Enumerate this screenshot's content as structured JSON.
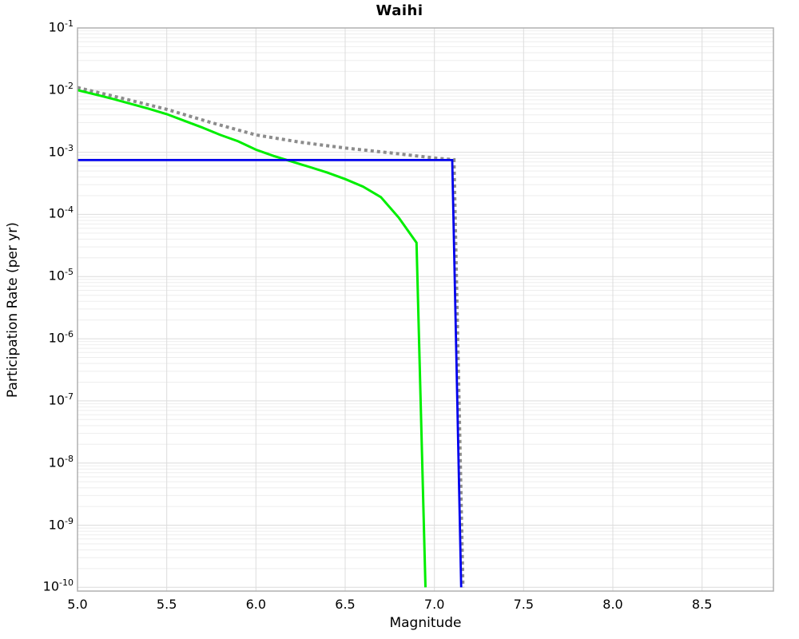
{
  "chart_data": {
    "type": "line",
    "title": "Waihi",
    "xlabel": "Magnitude",
    "ylabel": "Participation Rate (per yr)",
    "xlim": [
      5.0,
      8.9
    ],
    "ylim": [
      0.1,
      1e-10
    ],
    "x_ticks": [
      5.0,
      5.5,
      6.0,
      6.5,
      7.0,
      7.5,
      8.0,
      8.5
    ],
    "y_tick_exponents": [
      -1,
      -2,
      -3,
      -4,
      -5,
      -6,
      -7,
      -8,
      -9,
      -10
    ],
    "grid": true,
    "legend": false,
    "scale": {
      "x": "linear",
      "y": "log"
    },
    "colors": {
      "background": "#ffffff",
      "grid_major": "#dcdcdc",
      "grid_minor": "#eeeeee",
      "frame": "#b0b0b0",
      "green_line": "#00ee00",
      "blue_line": "#0000ee",
      "gray_dotted_line": "#8c8c8c"
    },
    "series": [
      {
        "name": "gray-dotted",
        "color": "#8c8c8c",
        "style": "dotted",
        "width": 4,
        "points": [
          [
            5.0,
            0.011
          ],
          [
            5.25,
            0.0074
          ],
          [
            5.5,
            0.0049
          ],
          [
            5.75,
            0.003
          ],
          [
            6.0,
            0.0019
          ],
          [
            6.25,
            0.00145
          ],
          [
            6.5,
            0.00117
          ],
          [
            6.75,
            0.00098
          ],
          [
            7.0,
            0.00081
          ],
          [
            7.11,
            0.00076
          ],
          [
            7.16,
            1e-10
          ]
        ]
      },
      {
        "name": "green-solid",
        "color": "#00ee00",
        "style": "solid",
        "width": 3,
        "points": [
          [
            5.0,
            0.01
          ],
          [
            5.1,
            0.0085
          ],
          [
            5.2,
            0.0072
          ],
          [
            5.3,
            0.006
          ],
          [
            5.4,
            0.005
          ],
          [
            5.5,
            0.0041
          ],
          [
            5.6,
            0.0032
          ],
          [
            5.7,
            0.0025
          ],
          [
            5.8,
            0.0019
          ],
          [
            5.9,
            0.0015
          ],
          [
            6.0,
            0.0011
          ],
          [
            6.1,
            0.00087
          ],
          [
            6.2,
            0.00071
          ],
          [
            6.3,
            0.00058
          ],
          [
            6.4,
            0.00047
          ],
          [
            6.5,
            0.00037
          ],
          [
            6.6,
            0.00028
          ],
          [
            6.7,
            0.00019
          ],
          [
            6.8,
            8.9e-05
          ],
          [
            6.9,
            3.5e-05
          ],
          [
            6.95,
            1e-10
          ]
        ]
      },
      {
        "name": "blue-solid",
        "color": "#0000ee",
        "style": "solid",
        "width": 2.8,
        "points": [
          [
            5.0,
            0.00075
          ],
          [
            7.1,
            0.00075
          ],
          [
            7.15,
            1e-10
          ]
        ]
      }
    ]
  }
}
